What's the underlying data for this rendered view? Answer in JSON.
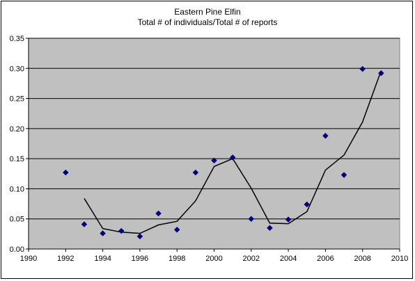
{
  "chart_data": {
    "type": "scatter",
    "title": "Eastern Pine Elfin",
    "subtitle": "Total # of individuals/Total # of reports",
    "xlabel": "",
    "ylabel": "",
    "xlim": [
      1990,
      2010
    ],
    "ylim": [
      0,
      0.35
    ],
    "x_ticks": [
      1990,
      1992,
      1994,
      1996,
      1998,
      2000,
      2002,
      2004,
      2006,
      2008,
      2010
    ],
    "y_ticks": [
      "0.00",
      "0.05",
      "0.10",
      "0.15",
      "0.20",
      "0.25",
      "0.30",
      "0.35"
    ],
    "grid": true,
    "legend": "none",
    "series": [
      {
        "type": "scatter",
        "marker": "diamond",
        "color": "#000080",
        "points": [
          {
            "x": 1992,
            "y": 0.127
          },
          {
            "x": 1993,
            "y": 0.041
          },
          {
            "x": 1994,
            "y": 0.026
          },
          {
            "x": 1995,
            "y": 0.03
          },
          {
            "x": 1996,
            "y": 0.021
          },
          {
            "x": 1997,
            "y": 0.059
          },
          {
            "x": 1998,
            "y": 0.032
          },
          {
            "x": 1999,
            "y": 0.127
          },
          {
            "x": 2000,
            "y": 0.147
          },
          {
            "x": 2001,
            "y": 0.152
          },
          {
            "x": 2002,
            "y": 0.05
          },
          {
            "x": 2003,
            "y": 0.035
          },
          {
            "x": 2004,
            "y": 0.049
          },
          {
            "x": 2005,
            "y": 0.074
          },
          {
            "x": 2006,
            "y": 0.188
          },
          {
            "x": 2007,
            "y": 0.123
          },
          {
            "x": 2008,
            "y": 0.299
          },
          {
            "x": 2009,
            "y": 0.292
          }
        ]
      },
      {
        "type": "line",
        "color": "#000000",
        "points": [
          {
            "x": 1993,
            "y": 0.084
          },
          {
            "x": 1994,
            "y": 0.034
          },
          {
            "x": 1995,
            "y": 0.028
          },
          {
            "x": 1996,
            "y": 0.026
          },
          {
            "x": 1997,
            "y": 0.04
          },
          {
            "x": 1998,
            "y": 0.046
          },
          {
            "x": 1999,
            "y": 0.08
          },
          {
            "x": 2000,
            "y": 0.137
          },
          {
            "x": 2001,
            "y": 0.15
          },
          {
            "x": 2002,
            "y": 0.101
          },
          {
            "x": 2003,
            "y": 0.043
          },
          {
            "x": 2004,
            "y": 0.042
          },
          {
            "x": 2005,
            "y": 0.062
          },
          {
            "x": 2006,
            "y": 0.131
          },
          {
            "x": 2007,
            "y": 0.156
          },
          {
            "x": 2008,
            "y": 0.211
          },
          {
            "x": 2009,
            "y": 0.296
          }
        ]
      }
    ],
    "colors": {
      "plot_background": "#C0C0C0",
      "gridline": "#000000",
      "axis": "#808080"
    }
  }
}
